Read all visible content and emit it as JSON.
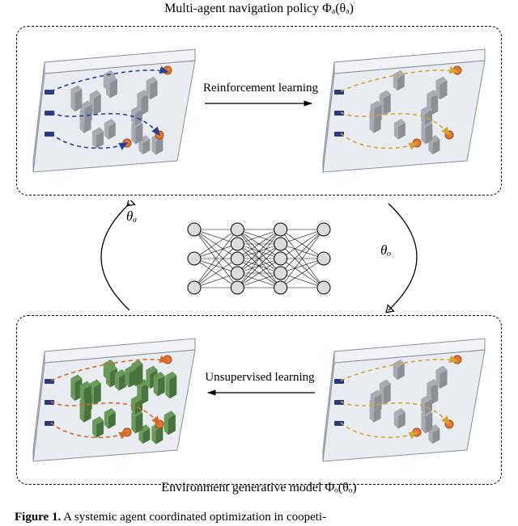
{
  "title_top": "Multi-agent navigation policy Φₐ(θₐ)",
  "title_bottom": "Environment generative model Φₒ(θₒ)",
  "labels": {
    "rl": "Reinforcement learning",
    "ul": "Unsupervised learning"
  },
  "theta": {
    "a": "θₐ",
    "o": "θₒ"
  },
  "caption_prefix": "Figure 1.",
  "caption_text": " A systemic agent coordinated optimization in coopeti-",
  "colors": {
    "floor": "#e9ecf1",
    "wall_light": "#f0f2f6",
    "wall_dark": "#c6cbd6",
    "obstacle_gray": "#a8acb2",
    "obstacle_gray_dark": "#8c9096",
    "obstacle_green": "#6a9a5a",
    "obstacle_green_dark": "#49733c",
    "robot": "#2a3a80",
    "goal": "#e07838",
    "path_blue": "#2a4191",
    "path_yellow": "#d4a536",
    "path_orange": "#d46a2a",
    "nn_fill": "#dcdcde",
    "nn_stroke": "#000"
  },
  "envs": {
    "top_left": {
      "obstacles": "gray",
      "obstacles_n": 14,
      "paths": "blue",
      "start_count": 3
    },
    "top_right": {
      "obstacles": "gray",
      "obstacles_n": 10,
      "paths": "yellow",
      "start_count": 3
    },
    "bot_left": {
      "obstacles": "green",
      "obstacles_n": 22,
      "paths": "orange",
      "start_count": 3
    },
    "bot_right": {
      "obstacles": "gray",
      "obstacles_n": 10,
      "paths": "yellow",
      "start_count": 3
    }
  },
  "nn_layers": [
    3,
    5,
    5,
    3
  ],
  "figure_wh": [
    640,
    651
  ]
}
